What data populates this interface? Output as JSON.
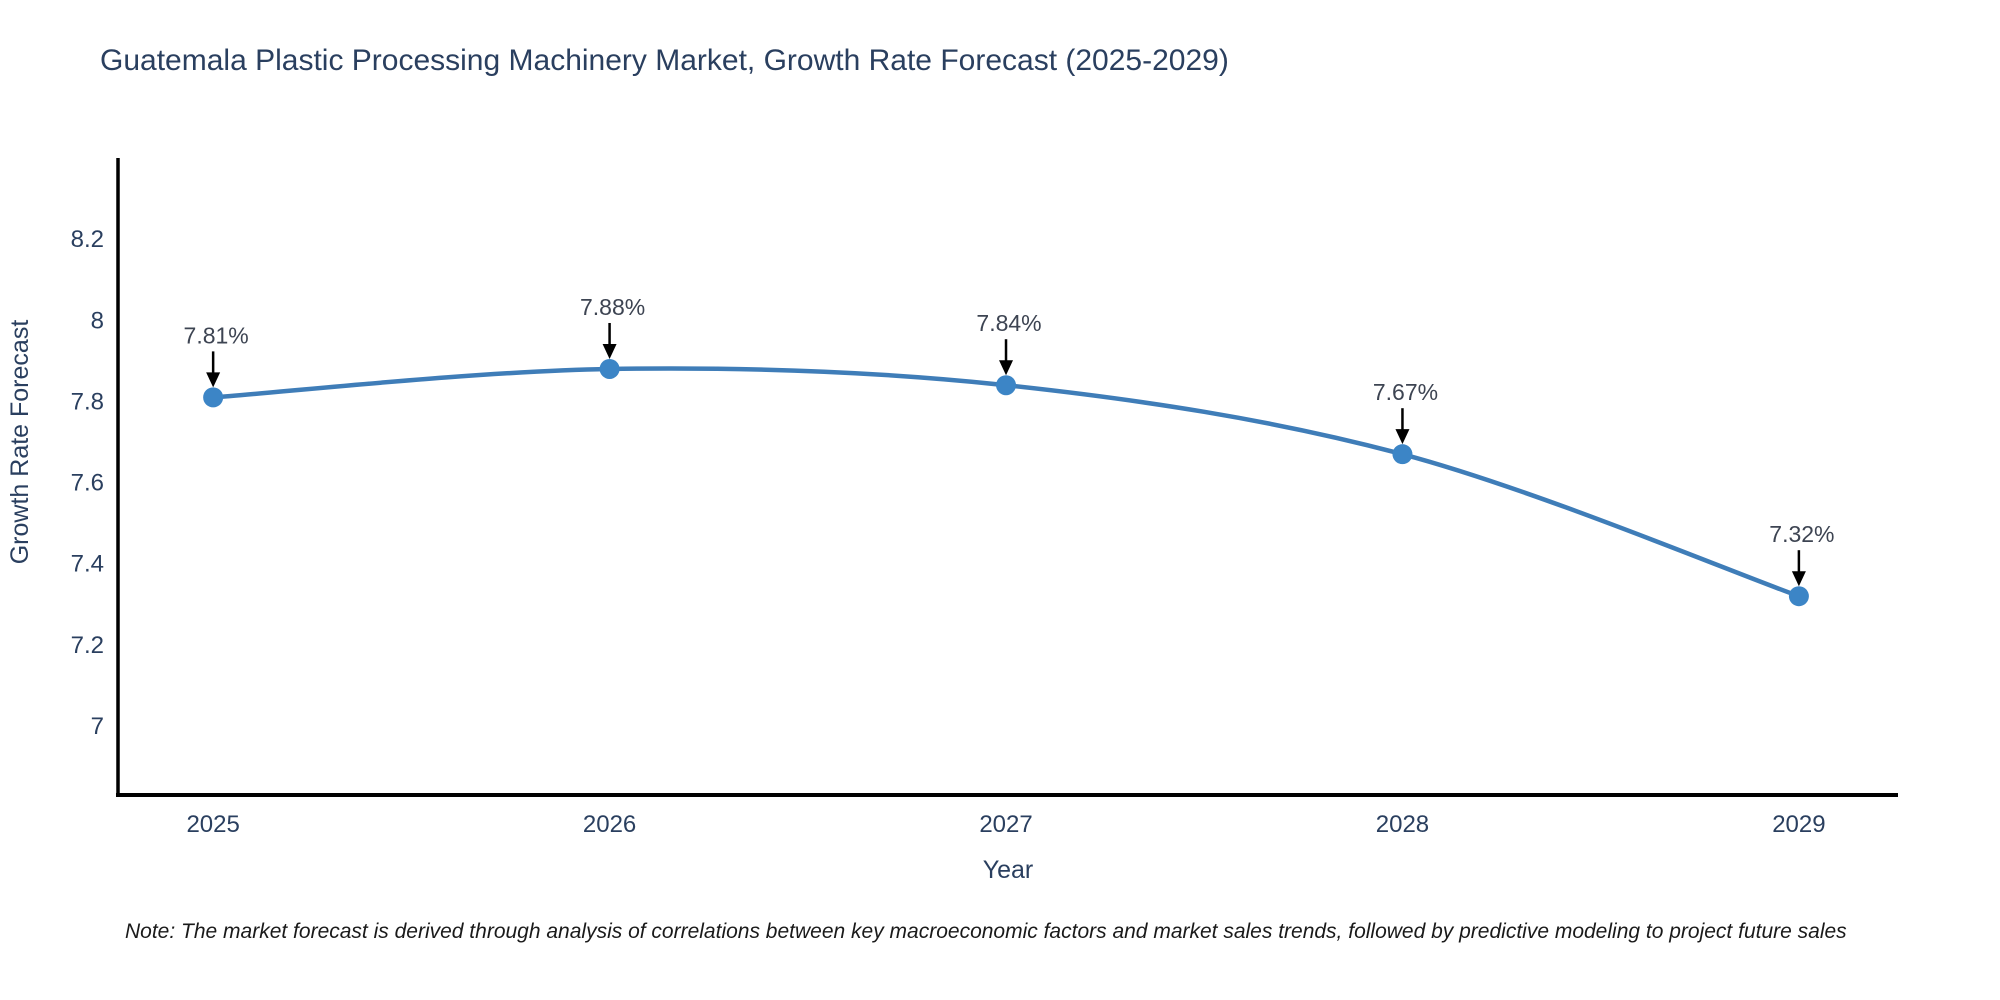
{
  "title": "Guatemala Plastic Processing Machinery Market, Growth Rate Forecast (2025-2029)",
  "note": "Note: The market forecast is derived through analysis of correlations between key macroeconomic factors and market sales trends, followed by predictive modeling to project future sales",
  "chart_data": {
    "type": "line",
    "title": "Guatemala Plastic Processing Machinery Market, Growth Rate Forecast (2025-2029)",
    "x": [
      2025,
      2026,
      2027,
      2028,
      2029
    ],
    "series": [
      {
        "name": "Growth Rate Forecast",
        "values": [
          7.81,
          7.88,
          7.84,
          7.67,
          7.32
        ]
      }
    ],
    "point_labels": [
      "7.81%",
      "7.88%",
      "7.84%",
      "7.67%",
      "7.32%"
    ],
    "xlabel": "Year",
    "ylabel": "Growth Rate Forecast",
    "x_ticks": [
      "2025",
      "2026",
      "2027",
      "2028",
      "2029"
    ],
    "y_ticks": [
      7,
      7.2,
      7.4,
      7.6,
      7.8,
      8,
      8.2
    ],
    "xlim": [
      2024.76,
      2029.25
    ],
    "ylim": [
      6.83,
      8.4
    ],
    "grid": false,
    "legend": "none",
    "line_shape": "spline",
    "line_color": "#3f7db8",
    "marker_color": "#3c85c6",
    "axis_color": "#000000",
    "label_color": "#2a3f5f",
    "annotation_color": "#3d4452",
    "arrow_color": "#000000"
  }
}
